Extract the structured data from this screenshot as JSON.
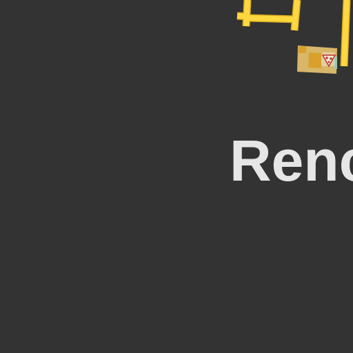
{
  "map": {
    "background_color": "#333333",
    "road_color": "#ffd740",
    "road_outline_color": "#d9ae1e",
    "building_color": "#d8b66a",
    "building_accent_color": "#d9a12b",
    "park_color": "#9fc7a4",
    "label": {
      "text": "Renc",
      "color": "#e6e6e6"
    },
    "poi": {
      "icon": "pizza-slice-icon"
    }
  }
}
